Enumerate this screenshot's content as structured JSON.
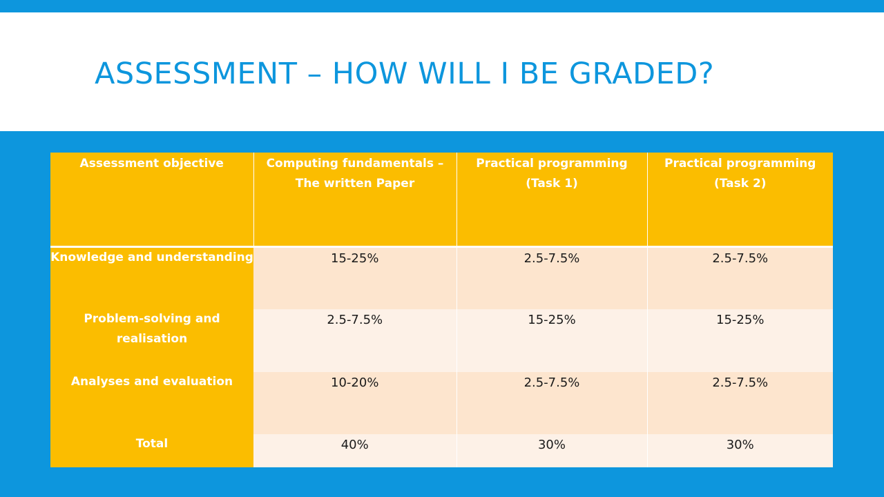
{
  "title": "ASSESSMENT – HOW WILL I BE GRADED?",
  "table": {
    "headers": [
      "Assessment objective",
      "Computing fundamentals – The written Paper",
      "Practical programming (Task 1)",
      "Practical programming (Task 2)"
    ],
    "rows": [
      {
        "label": "Knowledge and understanding",
        "values": [
          "15-25%",
          "2.5-7.5%",
          "2.5-7.5%"
        ]
      },
      {
        "label": "Problem-solving and realisation",
        "values": [
          "2.5-7.5%",
          "15-25%",
          "15-25%"
        ]
      },
      {
        "label": "Analyses and evaluation",
        "values": [
          "10-20%",
          "2.5-7.5%",
          "2.5-7.5%"
        ]
      },
      {
        "label": "Total",
        "values": [
          "40%",
          "30%",
          "30%"
        ]
      }
    ]
  },
  "colors": {
    "background": "#0d96dd",
    "title": "#0d96dd",
    "header_fill": "#fbbd00",
    "band_a": "#fde5ce",
    "band_b": "#fdf1e7"
  }
}
